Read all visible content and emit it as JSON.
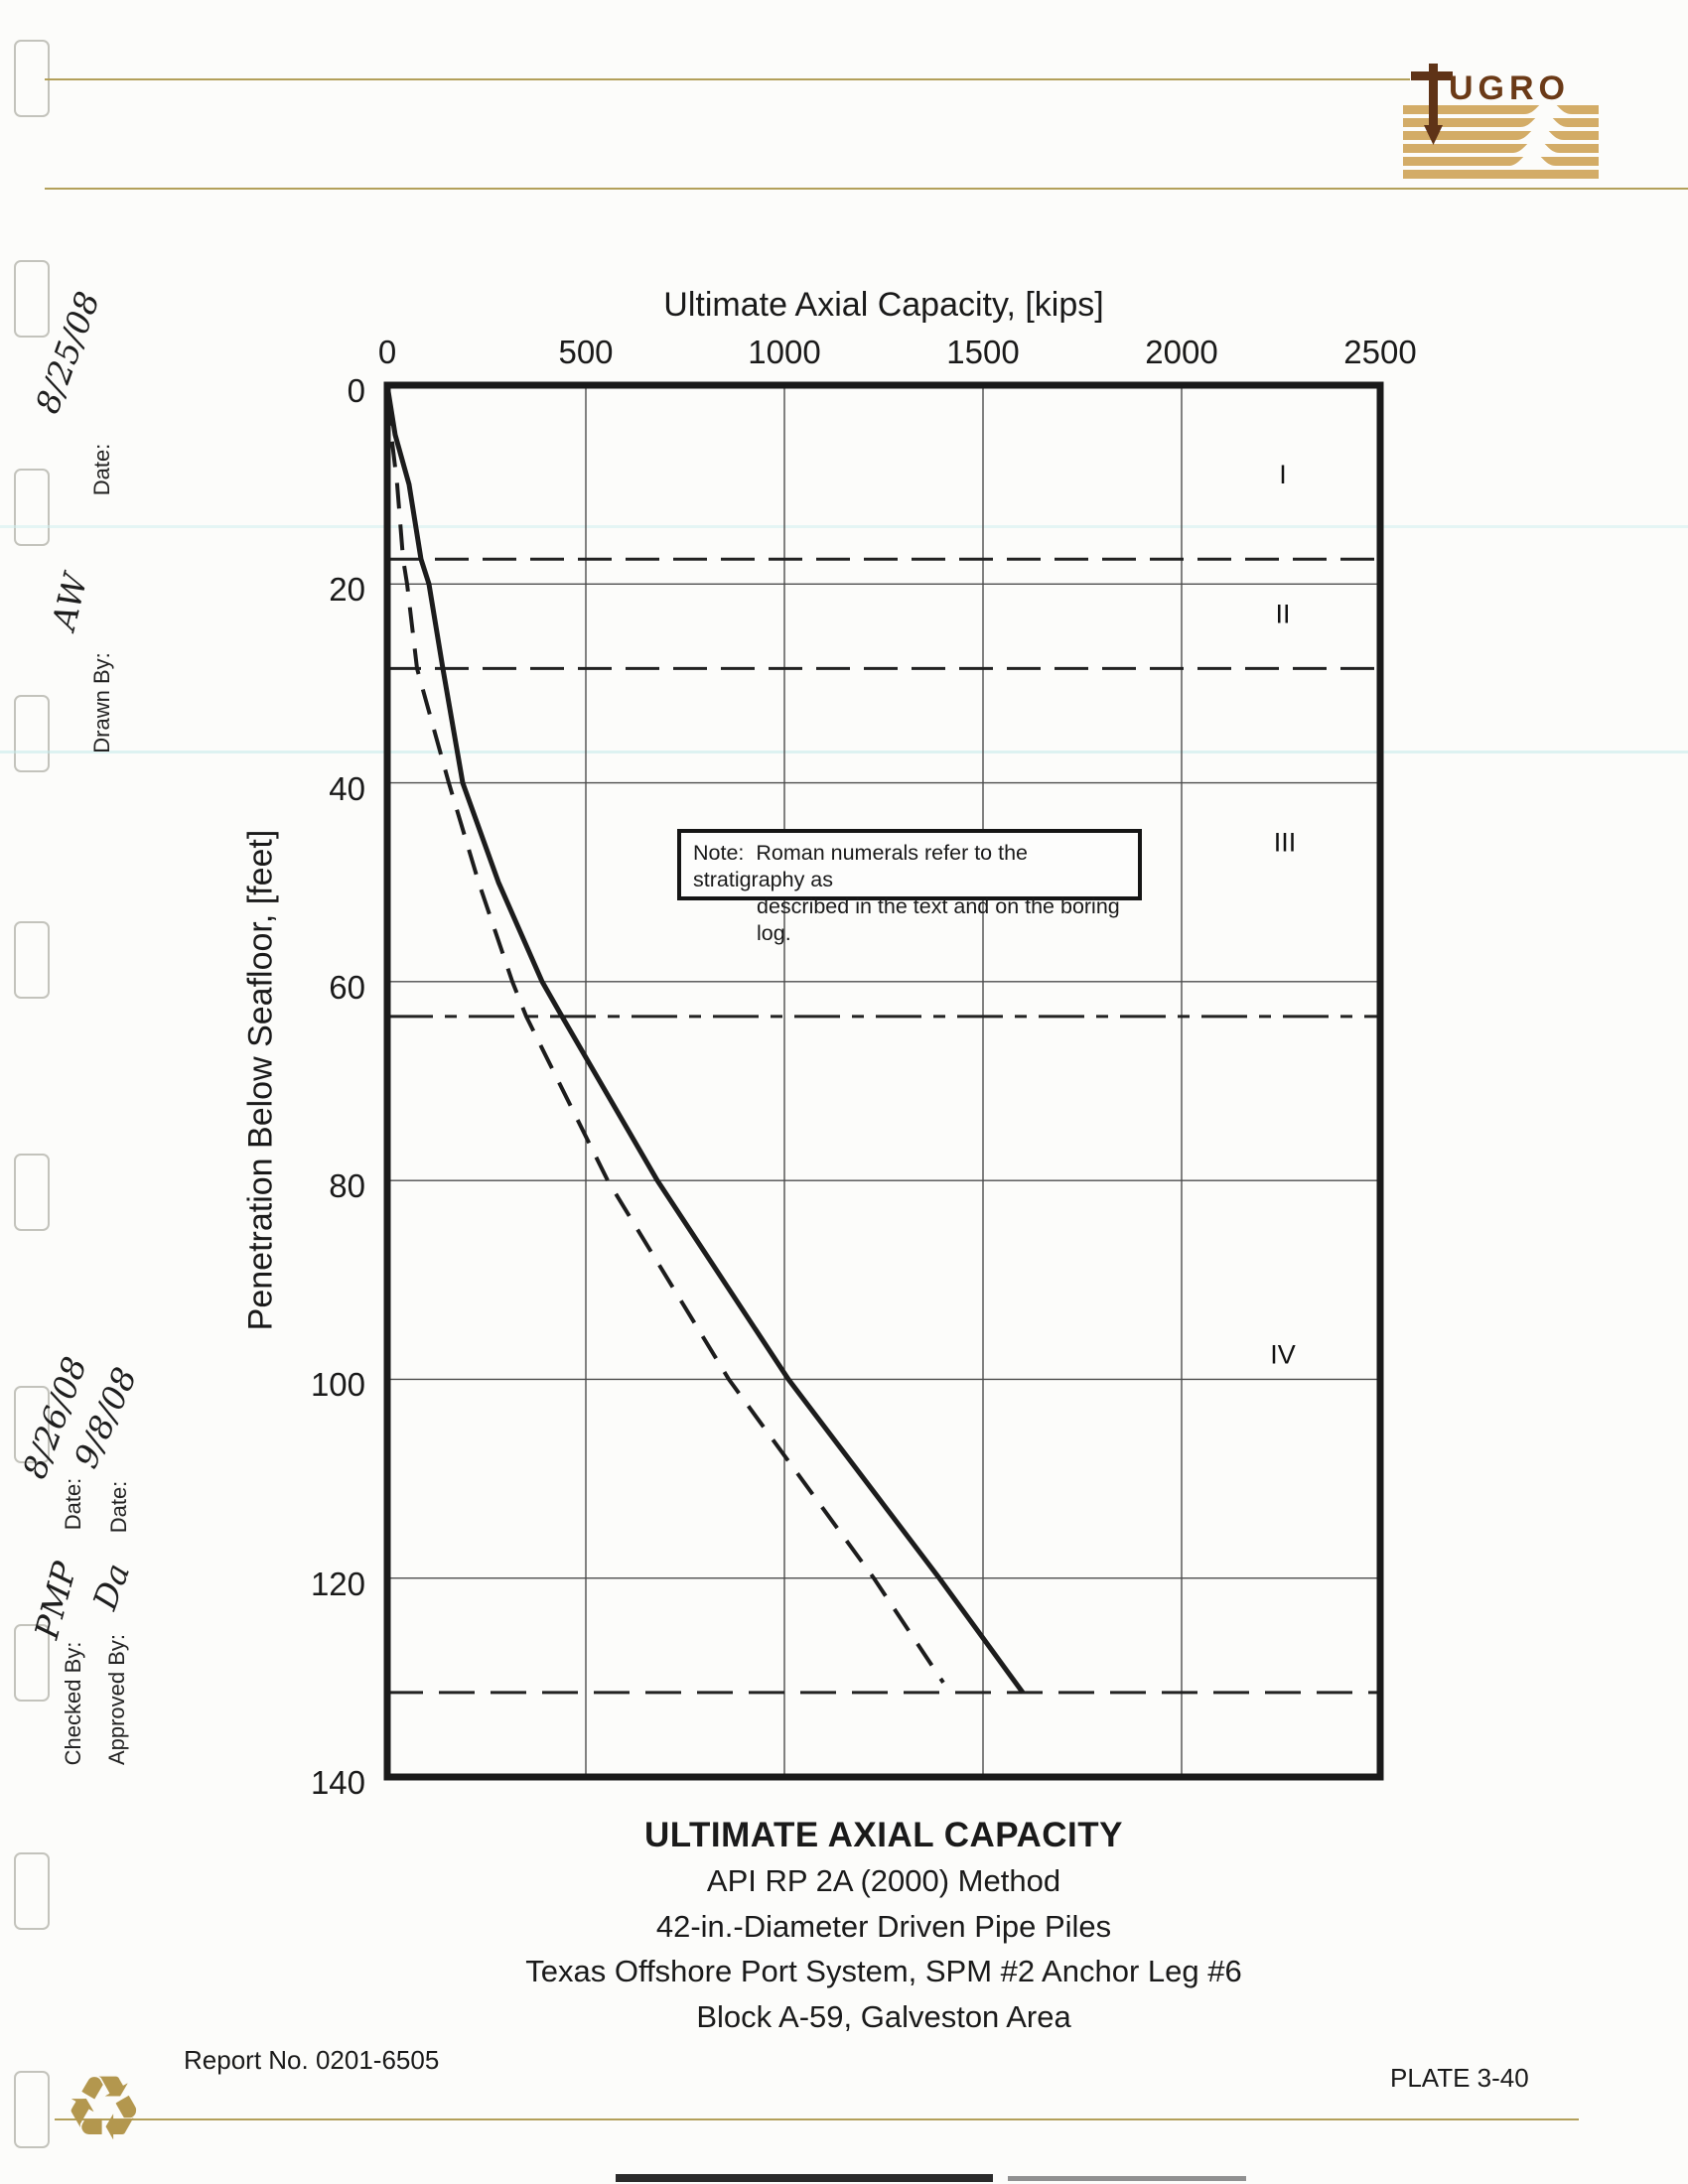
{
  "logo": {
    "company": "FUGRO",
    "letters_shown": "UGRO"
  },
  "margin": {
    "drawn_by_label": "Drawn By:",
    "drawn_by_value": "AW",
    "drawn_date_label": "Date:",
    "drawn_date_value": "8/25/08",
    "checked_by_label": "Checked By:",
    "checked_by_value": "PMP",
    "checked_date_label": "Date:",
    "checked_date_value": "8/26/08",
    "approved_by_label": "Approved By:",
    "approved_by_value": "Da",
    "approved_date_label": "Date:",
    "approved_date_value": "9/8/08"
  },
  "note": {
    "prefix": "Note:",
    "line1": "Roman numerals refer to the stratigraphy as",
    "line2": "described in the text and on the boring log."
  },
  "title_block": {
    "main": "ULTIMATE AXIAL CAPACITY",
    "method": "API RP 2A (2000) Method",
    "piles": "42-in.-Diameter Driven Pipe Piles",
    "project": "Texas Offshore Port System, SPM #2 Anchor Leg #6",
    "location": "Block A-59, Galveston Area"
  },
  "footer": {
    "report_no": "Report No. 0201-6505",
    "plate": "PLATE 3-40"
  },
  "chart_data": {
    "type": "line",
    "xlabel": "Ultimate Axial Capacity, [kips]",
    "ylabel": "Penetration Below Seafloor, [feet]",
    "xlim": [
      0,
      2500
    ],
    "ylim": [
      0,
      140
    ],
    "x_ticks": [
      0,
      500,
      1000,
      1500,
      2000,
      2500
    ],
    "y_ticks": [
      0,
      20,
      40,
      60,
      80,
      100,
      120,
      140
    ],
    "x_axis_position": "top",
    "y_direction": "down",
    "grid": true,
    "legend": "none",
    "series": [
      {
        "name": "ultimate-axial-capacity-solid",
        "style": "solid",
        "points_kips_ft": [
          [
            0,
            0
          ],
          [
            20,
            5
          ],
          [
            55,
            10
          ],
          [
            85,
            17.5
          ],
          [
            105,
            20
          ],
          [
            140,
            28.5
          ],
          [
            190,
            40
          ],
          [
            280,
            50
          ],
          [
            390,
            60
          ],
          [
            440,
            63.5
          ],
          [
            680,
            80
          ],
          [
            1010,
            100
          ],
          [
            1390,
            120
          ],
          [
            1600,
            131.5
          ]
        ]
      },
      {
        "name": "ultimate-axial-capacity-dashed",
        "style": "dashed",
        "points_kips_ft": [
          [
            0,
            1.5
          ],
          [
            25,
            10
          ],
          [
            40,
            17.5
          ],
          [
            50,
            20
          ],
          [
            75,
            28.5
          ],
          [
            155,
            40
          ],
          [
            230,
            50
          ],
          [
            315,
            60
          ],
          [
            350,
            63.5
          ],
          [
            555,
            80
          ],
          [
            860,
            100
          ],
          [
            1225,
            120
          ],
          [
            1400,
            130.5
          ]
        ]
      }
    ],
    "strata_boundaries": [
      {
        "depth_ft": 17.5,
        "line_style": "long-dash"
      },
      {
        "depth_ft": 28.5,
        "line_style": "long-dash"
      },
      {
        "depth_ft": 63.5,
        "line_style": "dash-dot"
      },
      {
        "depth_ft": 131.5,
        "line_style": "dash"
      }
    ],
    "strata_labels": [
      {
        "label": "I",
        "capacity_kips": 2255,
        "depth_ft": 9
      },
      {
        "label": "II",
        "capacity_kips": 2255,
        "depth_ft": 23
      },
      {
        "label": "III",
        "capacity_kips": 2260,
        "depth_ft": 46
      },
      {
        "label": "IV",
        "capacity_kips": 2255,
        "depth_ft": 97.5
      }
    ]
  }
}
